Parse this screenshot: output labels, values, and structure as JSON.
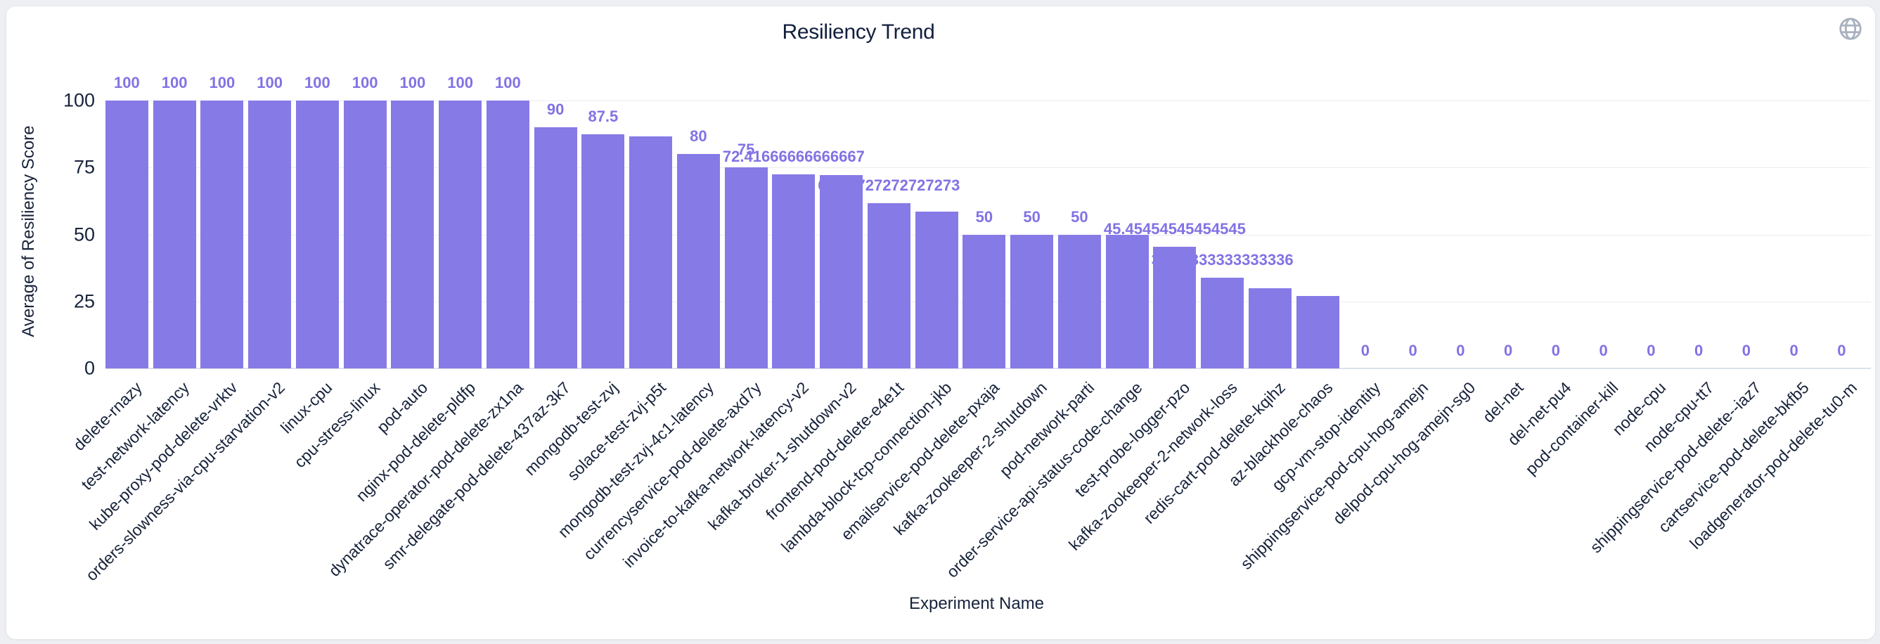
{
  "title": "Resiliency Trend",
  "colors": {
    "bar": "#867ae6",
    "value_label": "#8172e4",
    "dark_text": "#17233b",
    "gridline": "#ececf0",
    "axis_line": "#dde2ee",
    "globe_icon": "#a9b1bf",
    "card_background": "#ffffff",
    "page_background": "#edeff3"
  },
  "chart_data": {
    "type": "bar",
    "title": "Resiliency Trend",
    "xlabel": "Experiment Name",
    "ylabel": "Average of Resiliency Score",
    "ylim": [
      0,
      100
    ],
    "yticks": [
      0,
      25,
      50,
      75,
      100
    ],
    "grid": true,
    "legend": false,
    "bar_color": "#867ae6",
    "categories": [
      "delete-rnazy",
      "test-network-latency",
      "kube-proxy-pod-delete-vrktv",
      "orders-slowness-via-cpu-starvation-v2",
      "linux-cpu",
      "cpu-stress-linux",
      "pod-auto",
      "nginx-pod-delete-pldfp",
      "dynatrace-operator-pod-delete-zx1na",
      "smr-delegate-pod-delete-437az-3k7",
      "mongodb-test-zvj",
      "solace-test-zvj-p5t",
      "mongodb-test-zvj-4c1-latency",
      "currencyservice-pod-delete-axd7y",
      "invoice-to-kafka-network-latency-v2",
      "kafka-broker-1-shutdown-v2",
      "frontend-pod-delete-e4e1t",
      "lambda-block-tcp-connection-jkb",
      "emailservice-pod-delete-pxaja",
      "kafka-zookeeper-2-shutdown",
      "pod-network-parti",
      "order-service-api-status-code-change",
      "test-probe-logger-pzo",
      "kafka-zookeeper-2-network-loss",
      "redis-cart-pod-delete-kqihz",
      "az-blackhole-chaos",
      "gcp-vm-stop-identity",
      "shippingservice-pod-cpu-hog-amejn",
      "delpod-cpu-hog-amejn-sg0",
      "del-net",
      "del-net-pu4",
      "pod-container-kill",
      "node-cpu",
      "node-cpu-tt7",
      "shippingservice-pod-delete--iaz7",
      "cartservice-pod-delete-bkfb5",
      "loadgenerator-pod-delete-tu0-m"
    ],
    "values": [
      100,
      100,
      100,
      100,
      100,
      100,
      100,
      100,
      100,
      90,
      87.5,
      86.5,
      80,
      75,
      72.41666666666667,
      72.27272727272727,
      61.72727272727273,
      58.6,
      50,
      50,
      50,
      50,
      45.45454545454545,
      33.83333333333336,
      30,
      27,
      0,
      0,
      0,
      0,
      0,
      0,
      0,
      0,
      0,
      0,
      0
    ],
    "value_labels": [
      "100",
      "100",
      "100",
      "100",
      "100",
      "100",
      "100",
      "100",
      "100",
      "90",
      "87.5",
      null,
      "80",
      "75",
      "72.41666666666667",
      null,
      "61.72727272727273",
      null,
      "50",
      "50",
      "50",
      null,
      "45.45454545454545",
      "33.83333333333336",
      null,
      null,
      "0",
      "0",
      "0",
      "0",
      "0",
      "0",
      "0",
      "0",
      "0",
      "0",
      "0"
    ]
  }
}
